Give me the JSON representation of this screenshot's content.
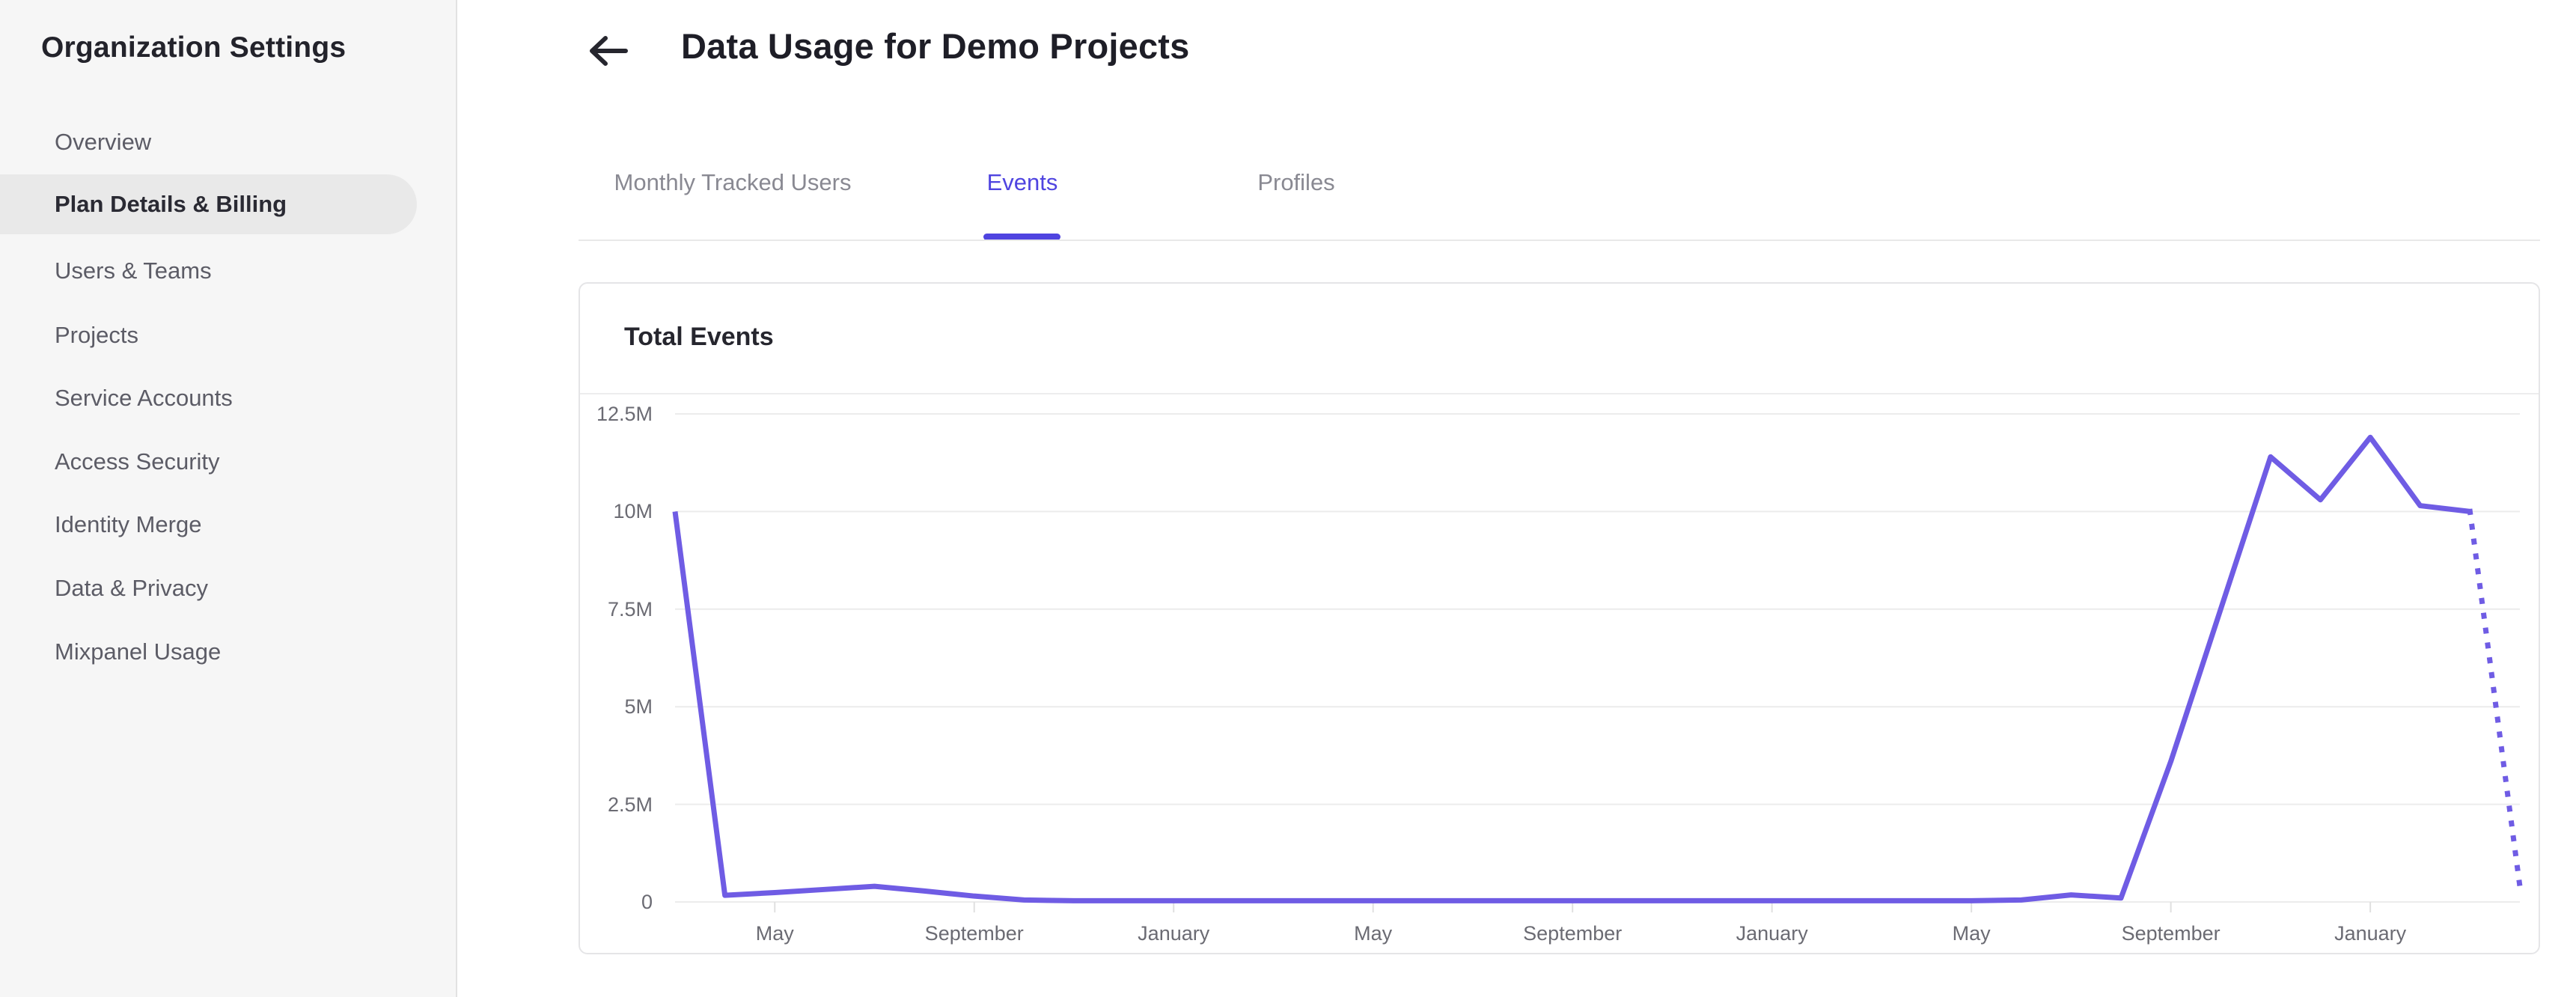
{
  "sidebar": {
    "title": "Organization Settings",
    "items": [
      {
        "label": "Overview",
        "selected": false
      },
      {
        "label": "Plan Details & Billing",
        "selected": true
      },
      {
        "label": "Users & Teams",
        "selected": false
      },
      {
        "label": "Projects",
        "selected": false
      },
      {
        "label": "Service Accounts",
        "selected": false
      },
      {
        "label": "Access Security",
        "selected": false
      },
      {
        "label": "Identity Merge",
        "selected": false
      },
      {
        "label": "Data & Privacy",
        "selected": false
      },
      {
        "label": "Mixpanel Usage",
        "selected": false
      }
    ]
  },
  "header": {
    "title": "Data Usage for Demo Projects",
    "back_icon": "arrow-left-icon"
  },
  "tabs": [
    {
      "label": "Monthly Tracked Users",
      "active": false
    },
    {
      "label": "Events",
      "active": true
    },
    {
      "label": "Profiles",
      "active": false
    }
  ],
  "card": {
    "title": "Total Events"
  },
  "colors": {
    "accent": "#4f44e0",
    "line": "#6f5ce4",
    "sidebar_bg": "#f6f6f6",
    "selected_pill": "#e9e9e9",
    "gridline": "#ececec",
    "axis_tick": "#e0e0e0",
    "axis_label": "#6b6b73"
  },
  "chart_data": {
    "type": "line",
    "title": "Total Events",
    "ylabel": "",
    "xlabel": "",
    "y_ticks": [
      "12.5M",
      "10M",
      "7.5M",
      "5M",
      "2.5M",
      "0"
    ],
    "y_tick_values_millions": [
      12.5,
      10,
      7.5,
      5,
      2.5,
      0
    ],
    "ylim_millions": [
      0,
      12.5
    ],
    "grid": true,
    "legend_position": "none",
    "x_tick_labels": [
      "May",
      "September",
      "January",
      "May",
      "September",
      "January",
      "May",
      "September",
      "January"
    ],
    "x_tick_indices": [
      2,
      6,
      10,
      14,
      18,
      22,
      26,
      30,
      34
    ],
    "series": [
      {
        "name": "Total Events (millions, monthly)",
        "values_millions": [
          10,
          0.17,
          0.24,
          0.32,
          0.4,
          0.28,
          0.15,
          0.05,
          0.03,
          0.03,
          0.03,
          0.03,
          0.03,
          0.03,
          0.03,
          0.03,
          0.03,
          0.03,
          0.03,
          0.03,
          0.03,
          0.03,
          0.03,
          0.03,
          0.03,
          0.03,
          0.03,
          0.05,
          0.18,
          0.1,
          3.6,
          7.5,
          11.4,
          10.3,
          11.9,
          10.15,
          10,
          0.4
        ],
        "solid_until_index": 36,
        "last_segment_style": "dotted-projection"
      }
    ]
  }
}
